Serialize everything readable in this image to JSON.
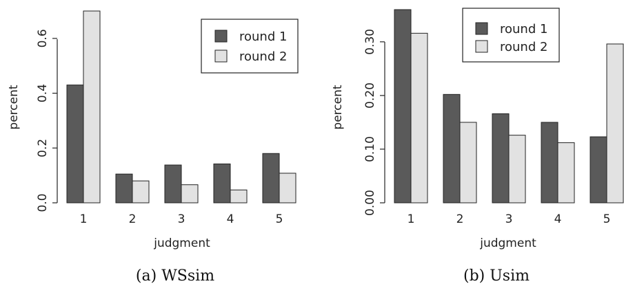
{
  "chart_data": [
    {
      "type": "bar",
      "categories": [
        "1",
        "2",
        "3",
        "4",
        "5"
      ],
      "series": [
        {
          "name": "round 1",
          "values": [
            0.43,
            0.105,
            0.138,
            0.142,
            0.18
          ]
        },
        {
          "name": "round 2",
          "values": [
            0.7,
            0.08,
            0.066,
            0.047,
            0.108
          ]
        }
      ],
      "colors": [
        "#5a5a5a",
        "#e2e2e2"
      ],
      "xlabel": "judgment",
      "ylabel": "percent",
      "yticks": [
        "0.0",
        "0.2",
        "0.4",
        "0.6"
      ],
      "ylim": [
        0,
        0.7
      ],
      "legend": "top-right",
      "caption": "(a) WSsim"
    },
    {
      "type": "bar",
      "categories": [
        "1",
        "2",
        "3",
        "4",
        "5"
      ],
      "series": [
        {
          "name": "round 1",
          "values": [
            0.36,
            0.202,
            0.166,
            0.15,
            0.123
          ]
        },
        {
          "name": "round 2",
          "values": [
            0.316,
            0.15,
            0.126,
            0.112,
            0.296
          ]
        }
      ],
      "colors": [
        "#5a5a5a",
        "#e2e2e2"
      ],
      "xlabel": "judgment",
      "ylabel": "percent",
      "yticks": [
        "0.00",
        "0.10",
        "0.20",
        "0.30"
      ],
      "ylim": [
        0,
        0.36
      ],
      "legend": "top-center",
      "caption": "(b) Usim"
    }
  ]
}
